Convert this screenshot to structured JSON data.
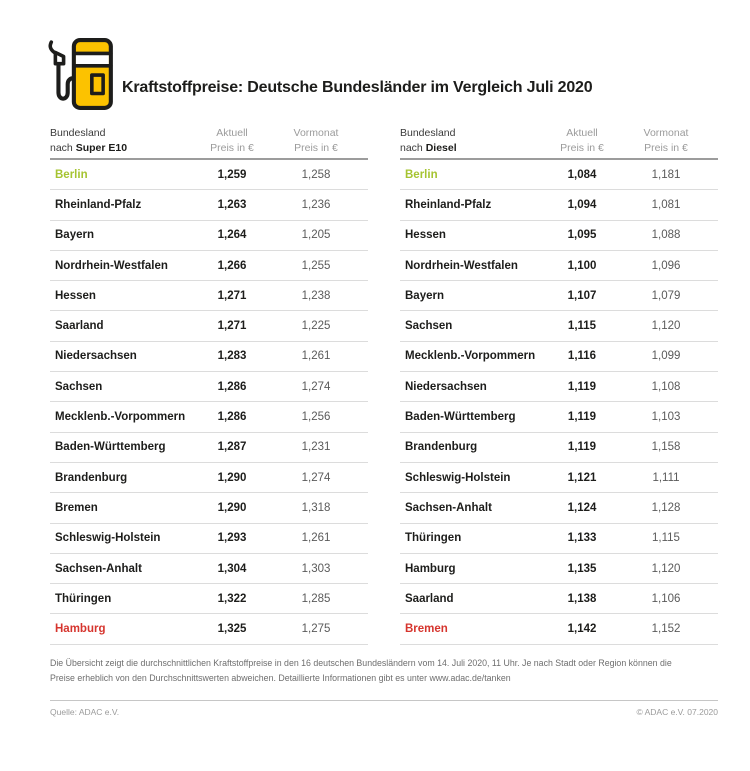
{
  "header": {
    "title": "Kraftstoffpreise: Deutsche Bundesländer im Vergleich Juli 2020",
    "icon": "fuel-pump"
  },
  "chart_data": [
    {
      "type": "table",
      "fuel": "Super E10",
      "header": {
        "col1_line1": "Bundesland",
        "col1_prefix": "nach ",
        "col1_bold": "Super E10",
        "col2_line1": "Aktuell",
        "col2_line2": "Preis in €",
        "col3_line1": "Vormonat",
        "col3_line2": "Preis in €"
      },
      "rows": [
        {
          "name": "Berlin",
          "aktuell": "1,259",
          "vormonat": "1,258",
          "color": "green"
        },
        {
          "name": "Rheinland-Pfalz",
          "aktuell": "1,263",
          "vormonat": "1,236"
        },
        {
          "name": "Bayern",
          "aktuell": "1,264",
          "vormonat": "1,205"
        },
        {
          "name": "Nordrhein-Westfalen",
          "aktuell": "1,266",
          "vormonat": "1,255"
        },
        {
          "name": "Hessen",
          "aktuell": "1,271",
          "vormonat": "1,238"
        },
        {
          "name": "Saarland",
          "aktuell": "1,271",
          "vormonat": "1,225"
        },
        {
          "name": "Niedersachsen",
          "aktuell": "1,283",
          "vormonat": "1,261"
        },
        {
          "name": "Sachsen",
          "aktuell": "1,286",
          "vormonat": "1,274"
        },
        {
          "name": "Mecklenb.-Vorpommern",
          "aktuell": "1,286",
          "vormonat": "1,256"
        },
        {
          "name": "Baden-Württemberg",
          "aktuell": "1,287",
          "vormonat": "1,231"
        },
        {
          "name": "Brandenburg",
          "aktuell": "1,290",
          "vormonat": "1,274"
        },
        {
          "name": "Bremen",
          "aktuell": "1,290",
          "vormonat": "1,318"
        },
        {
          "name": "Schleswig-Holstein",
          "aktuell": "1,293",
          "vormonat": "1,261"
        },
        {
          "name": "Sachsen-Anhalt",
          "aktuell": "1,304",
          "vormonat": "1,303"
        },
        {
          "name": "Thüringen",
          "aktuell": "1,322",
          "vormonat": "1,285"
        },
        {
          "name": "Hamburg",
          "aktuell": "1,325",
          "vormonat": "1,275",
          "color": "red"
        }
      ]
    },
    {
      "type": "table",
      "fuel": "Diesel",
      "header": {
        "col1_line1": "Bundesland",
        "col1_prefix": "nach ",
        "col1_bold": "Diesel",
        "col2_line1": "Aktuell",
        "col2_line2": "Preis in €",
        "col3_line1": "Vormonat",
        "col3_line2": "Preis in €"
      },
      "rows": [
        {
          "name": "Berlin",
          "aktuell": "1,084",
          "vormonat": "1,181",
          "color": "green"
        },
        {
          "name": "Rheinland-Pfalz",
          "aktuell": "1,094",
          "vormonat": "1,081"
        },
        {
          "name": "Hessen",
          "aktuell": "1,095",
          "vormonat": "1,088"
        },
        {
          "name": "Nordrhein-Westfalen",
          "aktuell": "1,100",
          "vormonat": "1,096"
        },
        {
          "name": "Bayern",
          "aktuell": "1,107",
          "vormonat": "1,079"
        },
        {
          "name": "Sachsen",
          "aktuell": "1,115",
          "vormonat": "1,120"
        },
        {
          "name": "Mecklenb.-Vorpommern",
          "aktuell": "1,116",
          "vormonat": "1,099"
        },
        {
          "name": "Niedersachsen",
          "aktuell": "1,119",
          "vormonat": "1,108"
        },
        {
          "name": "Baden-Württemberg",
          "aktuell": "1,119",
          "vormonat": "1,103"
        },
        {
          "name": "Brandenburg",
          "aktuell": "1,119",
          "vormonat": "1,158"
        },
        {
          "name": "Schleswig-Holstein",
          "aktuell": "1,121",
          "vormonat": "1,111"
        },
        {
          "name": "Sachsen-Anhalt",
          "aktuell": "1,124",
          "vormonat": "1,128"
        },
        {
          "name": "Thüringen",
          "aktuell": "1,133",
          "vormonat": "1,115"
        },
        {
          "name": "Hamburg",
          "aktuell": "1,135",
          "vormonat": "1,120"
        },
        {
          "name": "Saarland",
          "aktuell": "1,138",
          "vormonat": "1,106"
        },
        {
          "name": "Bremen",
          "aktuell": "1,142",
          "vormonat": "1,152",
          "color": "red"
        }
      ]
    }
  ],
  "footnote": "Die Übersicht zeigt die durchschnittlichen Kraftstoffpreise in den 16 deutschen Bundesländern vom 14. Juli 2020, 11 Uhr.  Je nach Stadt oder Region können die Preise erheblich von den Durchschnittswerten abweichen. Detaillierte Informationen gibt es unter www.adac.de/tanken",
  "source": {
    "left": "Quelle: ADAC e.V.",
    "right": "© ADAC e.V. 07.2020"
  },
  "colors": {
    "highlight_green": "#a6c432",
    "highlight_red": "#d6352e",
    "brand_yellow": "#fcc200"
  }
}
